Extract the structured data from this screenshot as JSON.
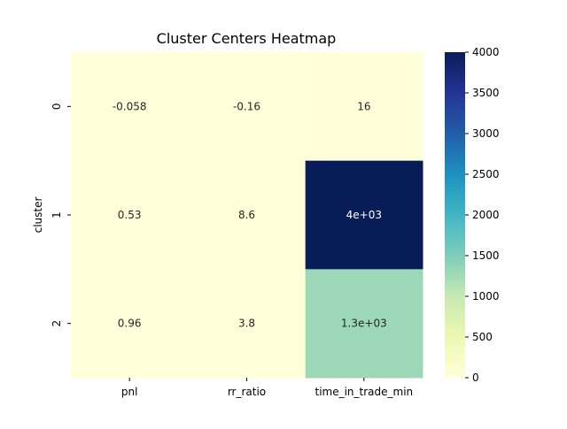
{
  "chart_data": {
    "type": "heatmap",
    "title": "Cluster Centers Heatmap",
    "xlabel": "",
    "ylabel": "cluster",
    "columns": [
      "pnl",
      "rr_ratio",
      "time_in_trade_min"
    ],
    "rows": [
      "0",
      "1",
      "2"
    ],
    "values": [
      [
        -0.058,
        -0.16,
        16
      ],
      [
        0.53,
        8.6,
        4000
      ],
      [
        0.96,
        3.8,
        1300
      ]
    ],
    "annotations": [
      [
        "-0.058",
        "-0.16",
        "16"
      ],
      [
        "0.53",
        "8.6",
        "4e+03"
      ],
      [
        "0.96",
        "3.8",
        "1.3e+03"
      ]
    ],
    "colorbar": {
      "colormap": "YlGnBu",
      "range": [
        0,
        4000
      ],
      "ticks": [
        0,
        500,
        1000,
        1500,
        2000,
        2500,
        3000,
        3500,
        4000
      ]
    }
  }
}
